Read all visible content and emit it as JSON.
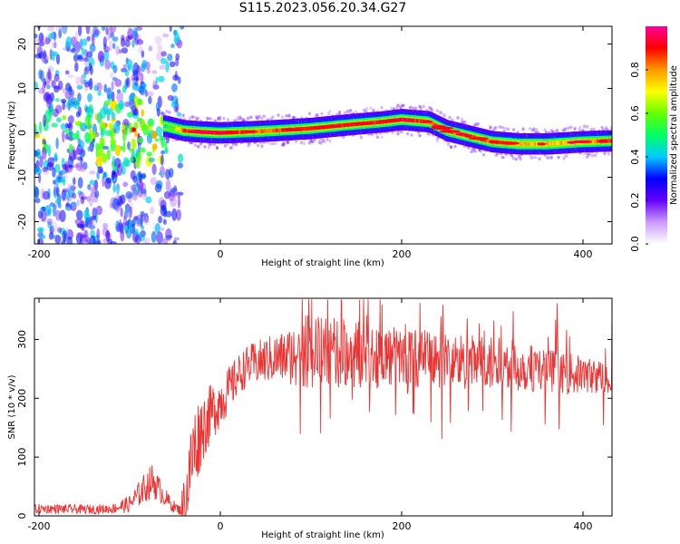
{
  "title": "S115.2023.056.20.34.G27",
  "colors": {
    "snr_line": "#ee3333",
    "frame": "#000000",
    "colormap": [
      "#ffffff",
      "#cc99ff",
      "#6600ff",
      "#0000ff",
      "#00ccff",
      "#00ff66",
      "#66ff00",
      "#ffff00",
      "#ff9900",
      "#ff0000",
      "#ff0099"
    ]
  },
  "chart_data": [
    {
      "type": "heatmap",
      "title": "",
      "xlabel": "Height of straight line (km)",
      "ylabel": "Frequency (Hz)",
      "xlim": [
        -205,
        432
      ],
      "ylim": [
        -25,
        24
      ],
      "xticks": [
        -200,
        0,
        200,
        400
      ],
      "yticks": [
        20,
        10,
        0,
        -10,
        -20
      ],
      "colorbar": {
        "label": "Normalized spectral amplitude",
        "range": [
          0.0,
          1.0
        ],
        "ticks": [
          "0.0",
          "0.2",
          "0.4",
          "0.6",
          "0.8"
        ],
        "tick_values": [
          0.0,
          0.2,
          0.4,
          0.6,
          0.8
        ]
      },
      "ridge": {
        "description_points_x": [
          -60,
          -50,
          -40,
          -20,
          0,
          40,
          60,
          100,
          140,
          180,
          200,
          230,
          250,
          280,
          300,
          330,
          360,
          400,
          432
        ],
        "frequency_y": [
          1.5,
          1,
          0.5,
          0.2,
          0,
          0.3,
          0.5,
          1,
          1.8,
          2.5,
          3,
          2.5,
          0.5,
          -1,
          -2,
          -2.5,
          -2.5,
          -2,
          -1.8
        ],
        "amplitude": [
          0.5,
          0.6,
          0.85,
          0.95,
          0.95,
          0.8,
          0.85,
          0.9,
          0.9,
          0.9,
          0.95,
          0.85,
          0.85,
          0.85,
          0.85,
          0.75,
          0.75,
          0.75,
          0.9
        ]
      },
      "noise_region_x": [
        -205,
        -60
      ]
    },
    {
      "type": "line",
      "title": "",
      "xlabel": "Height of straight line (km)",
      "ylabel": "SNR (10 * v/v)",
      "xlim": [
        -205,
        432
      ],
      "ylim": [
        0,
        370
      ],
      "xticks": [
        -200,
        0,
        200,
        400
      ],
      "yticks": [
        0,
        100,
        200,
        300
      ],
      "series": [
        {
          "name": "",
          "x": [
            -205,
            -180,
            -150,
            -120,
            -100,
            -85,
            -75,
            -65,
            -55,
            -45,
            -38,
            -30,
            -20,
            -10,
            0,
            10,
            20,
            30,
            50,
            70,
            90,
            100,
            120,
            150,
            180,
            200,
            230,
            260,
            290,
            320,
            350,
            380,
            410,
            432
          ],
          "y": [
            12,
            12,
            11,
            12,
            20,
            45,
            60,
            40,
            20,
            10,
            30,
            110,
            150,
            175,
            195,
            215,
            240,
            255,
            265,
            270,
            278,
            280,
            278,
            275,
            272,
            270,
            268,
            262,
            258,
            255,
            250,
            243,
            238,
            235
          ],
          "spread": [
            8,
            8,
            8,
            8,
            15,
            25,
            30,
            20,
            12,
            8,
            60,
            80,
            60,
            50,
            45,
            40,
            35,
            35,
            40,
            45,
            60,
            65,
            60,
            60,
            55,
            50,
            50,
            50,
            50,
            45,
            40,
            35,
            30,
            28
          ]
        }
      ]
    }
  ]
}
